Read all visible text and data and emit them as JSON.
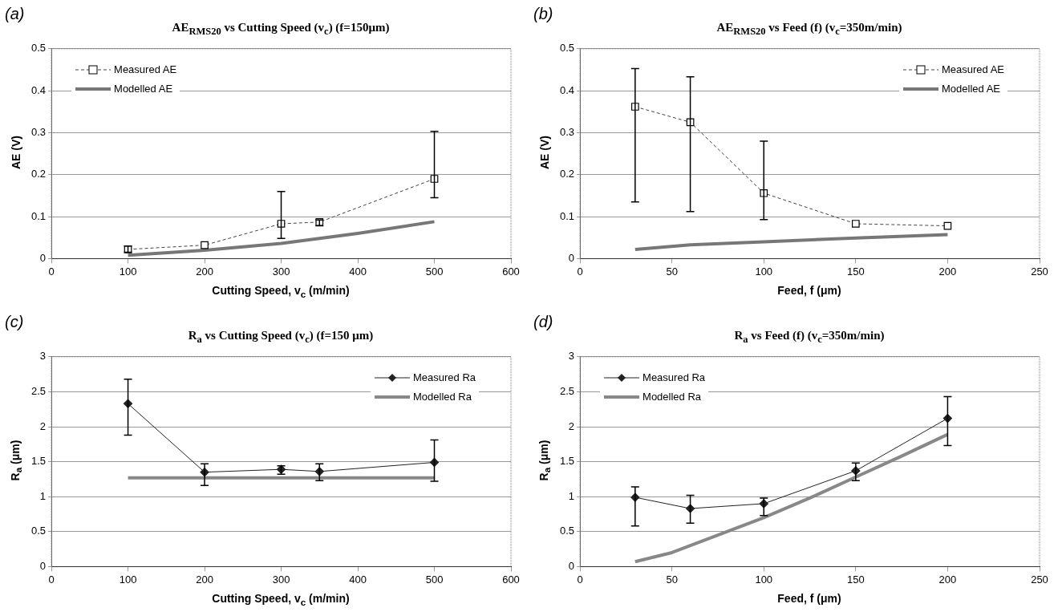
{
  "chart_data": [
    {
      "type": "line",
      "title": "AE$_{RMS20}$ vs Cutting Speed (v$_{c}$)  (f=150μm)",
      "xlabel": "Cutting Speed, v$_{c}$ (m/min)",
      "ylabel": "AE (V)",
      "annotations": [
        "(a)"
      ],
      "xlim": [
        0,
        600
      ],
      "xticks": [
        0,
        100,
        200,
        300,
        400,
        500,
        600
      ],
      "ylim": [
        0,
        0.5
      ],
      "yticks": [
        0,
        0.1,
        0.2,
        0.3,
        0.4,
        0.5
      ],
      "grid": "y",
      "legend": "top left",
      "series": [
        {
          "name": "Measured AE",
          "color": "#444444",
          "marker": "square",
          "line_style": "dashed",
          "x": [
            100,
            200,
            300,
            350,
            500
          ],
          "values": [
            0.022,
            0.032,
            0.083,
            0.087,
            0.19
          ],
          "errors": [
            [
              0.015,
              0.03
            ],
            null,
            [
              0.048,
              0.16
            ],
            [
              0.078,
              0.092
            ],
            [
              0.145,
              0.303
            ]
          ]
        },
        {
          "name": "Modelled AE",
          "color": "#777777",
          "marker": "none",
          "line_style": "solid",
          "x": [
            100,
            200,
            300,
            350,
            400,
            500
          ],
          "values": [
            0.008,
            0.02,
            0.036,
            0.048,
            0.06,
            0.088
          ]
        }
      ]
    },
    {
      "type": "line",
      "title": "AE$_{RMS20}$ vs Feed (f)  (v$_{c}$=350m/min)",
      "xlabel": "Feed, f (μm)",
      "ylabel": "AE (V)",
      "annotations": [
        "(b)"
      ],
      "xlim": [
        0,
        250
      ],
      "xticks": [
        0,
        50,
        100,
        150,
        200,
        250
      ],
      "ylim": [
        0,
        0.5
      ],
      "yticks": [
        0,
        0.1,
        0.2,
        0.3,
        0.4,
        0.5
      ],
      "grid": "y",
      "legend": "top right",
      "series": [
        {
          "name": "Measured AE",
          "color": "#444444",
          "marker": "square",
          "line_style": "dashed",
          "x": [
            30,
            60,
            100,
            150,
            200
          ],
          "values": [
            0.362,
            0.325,
            0.156,
            0.083,
            0.078
          ],
          "errors": [
            [
              0.135,
              0.453
            ],
            [
              0.112,
              0.433
            ],
            [
              0.093,
              0.28
            ],
            null,
            null
          ]
        },
        {
          "name": "Modelled AE",
          "color": "#777777",
          "marker": "none",
          "line_style": "solid",
          "x": [
            30,
            60,
            100,
            150,
            200
          ],
          "values": [
            0.022,
            0.033,
            0.04,
            0.049,
            0.057
          ]
        }
      ]
    },
    {
      "type": "line",
      "title": "R$_{a}$ vs Cutting Speed (v$_{c}$)  (f=150 μm)",
      "xlabel": "Cutting Speed, v$_{c}$ (m/min)",
      "ylabel": "R$_{a}$ (μm)",
      "annotations": [
        "(c)"
      ],
      "xlim": [
        0,
        600
      ],
      "xticks": [
        0,
        100,
        200,
        300,
        400,
        500,
        600
      ],
      "ylim": [
        0,
        3
      ],
      "yticks": [
        0,
        0.5,
        1,
        1.5,
        2,
        2.5,
        3
      ],
      "grid": "y",
      "legend": "top right",
      "series": [
        {
          "name": "Measured Ra",
          "color": "#222222",
          "marker": "diamond",
          "line_style": "solid",
          "x": [
            100,
            200,
            300,
            350,
            500
          ],
          "values": [
            2.33,
            1.35,
            1.39,
            1.36,
            1.49
          ],
          "errors": [
            [
              1.88,
              2.68
            ],
            [
              1.16,
              1.47
            ],
            [
              1.32,
              1.44
            ],
            [
              1.23,
              1.47
            ],
            [
              1.22,
              1.81
            ]
          ]
        },
        {
          "name": "Modelled Ra",
          "color": "#888888",
          "marker": "none",
          "line_style": "solid",
          "x": [
            100,
            500
          ],
          "values": [
            1.27,
            1.27
          ]
        }
      ]
    },
    {
      "type": "line",
      "title": "R$_{a}$ vs Feed (f)  (v$_{c}$=350m/min)",
      "xlabel": "Feed, f (μm)",
      "ylabel": "R$_{a}$ (μm)",
      "annotations": [
        "(d)"
      ],
      "xlim": [
        0,
        250
      ],
      "xticks": [
        0,
        50,
        100,
        150,
        200,
        250
      ],
      "ylim": [
        0,
        3
      ],
      "yticks": [
        0,
        0.5,
        1,
        1.5,
        2,
        2.5,
        3
      ],
      "grid": "y",
      "legend": "top left",
      "series": [
        {
          "name": "Measured Ra",
          "color": "#222222",
          "marker": "diamond",
          "line_style": "solid",
          "x": [
            30,
            60,
            100,
            150,
            200
          ],
          "values": [
            0.99,
            0.83,
            0.9,
            1.37,
            2.12
          ],
          "errors": [
            [
              0.58,
              1.14
            ],
            [
              0.62,
              1.02
            ],
            [
              0.73,
              0.98
            ],
            [
              1.23,
              1.48
            ],
            [
              1.73,
              2.43
            ]
          ]
        },
        {
          "name": "Modelled Ra",
          "color": "#888888",
          "marker": "none",
          "line_style": "solid",
          "x": [
            30,
            50,
            75,
            100,
            125,
            150,
            175,
            200
          ],
          "values": [
            0.07,
            0.2,
            0.45,
            0.7,
            0.98,
            1.28,
            1.58,
            1.89
          ]
        }
      ]
    }
  ]
}
